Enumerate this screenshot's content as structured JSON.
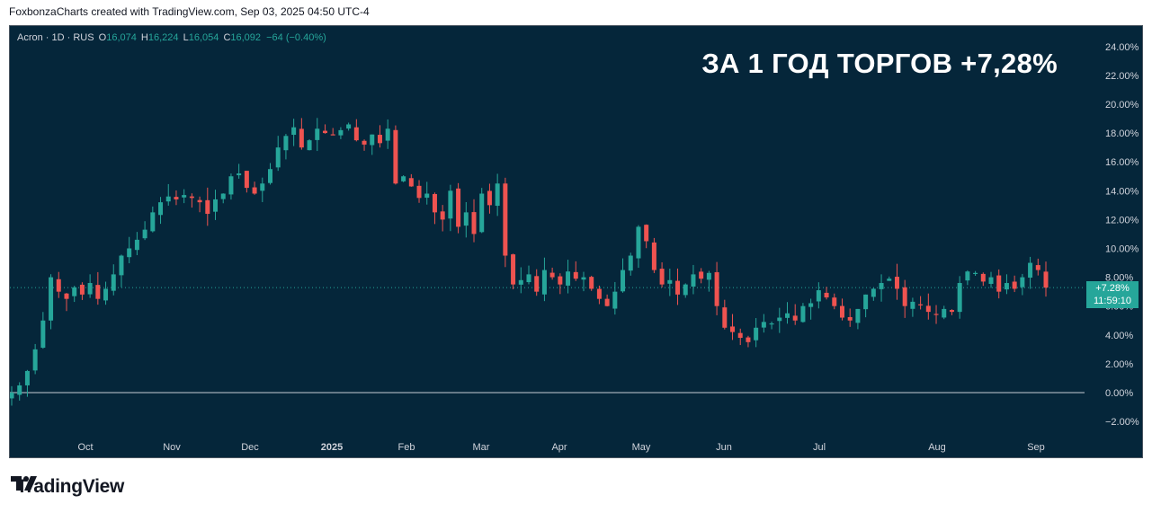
{
  "header": {
    "caption": "FoxbonzaCharts created with TradingView.com, Sep 03, 2025 04:50 UTC-4"
  },
  "legend": {
    "symbol": "Acron · 1D · RUS",
    "o_label": "O",
    "o_value": "16,074",
    "h_label": "H",
    "h_value": "16,224",
    "l_label": "L",
    "l_value": "16,054",
    "c_label": "C",
    "c_value": "16,092",
    "change": "−64 (−0.40%)"
  },
  "title_overlay": "ЗА 1 ГОД ТОРГОВ +7,28%",
  "price_badge": {
    "value": "+7.28%",
    "countdown": "11:59:10"
  },
  "brand": {
    "name": "TradingView"
  },
  "colors": {
    "background": "#05263a",
    "up": "#26a69a",
    "down": "#ef5350",
    "axis_text": "#d1d4dc"
  },
  "chart_data": {
    "type": "candlestick",
    "y_axis": {
      "unit": "%",
      "ticks": [
        "24.00%",
        "22.00%",
        "20.00%",
        "18.00%",
        "16.00%",
        "14.00%",
        "12.00%",
        "10.00%",
        "8.00%",
        "6.00%",
        "4.00%",
        "2.00%",
        "0.00%",
        "−2.00%"
      ],
      "range": [
        -2.5,
        24.5
      ],
      "baseline": 0
    },
    "x_axis": {
      "ticks": [
        "Oct",
        "Nov",
        "Dec",
        "2025",
        "Feb",
        "Mar",
        "Apr",
        "May",
        "Jun",
        "Jul",
        "Aug",
        "Sep"
      ],
      "bold_ticks": [
        "2025"
      ]
    },
    "last_value": 7.28,
    "series_close_percent": [
      0.0,
      0.5,
      1.5,
      3.0,
      5.0,
      8.0,
      7.0,
      6.5,
      7.3,
      6.8,
      7.6,
      6.5,
      7.2,
      8.2,
      9.5,
      10.0,
      10.6,
      11.3,
      12.5,
      13.2,
      13.6,
      13.4,
      13.7,
      13.5,
      13.2,
      12.4,
      13.4,
      13.8,
      15.0,
      15.2,
      14.2,
      13.8,
      14.5,
      15.5,
      17.0,
      17.8,
      18.4,
      17.0,
      17.5,
      18.3,
      18.0,
      17.9,
      18.2,
      18.6,
      17.5,
      17.2,
      17.9,
      17.3,
      18.3,
      14.5,
      15.0,
      14.3,
      13.5,
      13.8,
      12.5,
      12.0,
      14.0,
      11.5,
      12.5,
      11.0,
      13.8,
      13.0,
      14.5,
      9.5,
      7.5,
      7.8,
      8.2,
      7.0,
      8.5,
      8.0,
      7.5,
      8.4,
      7.9,
      8.0,
      7.2,
      6.5,
      6.0,
      7.0,
      8.5,
      9.5,
      11.5,
      10.5,
      8.5,
      7.5,
      7.8,
      6.8,
      7.5,
      8.2,
      7.9,
      8.3,
      6.0,
      4.5,
      4.2,
      3.8,
      3.5,
      4.5,
      4.9,
      4.8,
      5.2,
      5.5,
      5.0,
      6.0,
      6.2,
      7.1,
      6.6,
      6.0,
      5.2,
      5.0,
      5.8,
      6.8,
      7.2,
      7.6,
      7.9,
      7.2,
      6.0,
      6.3,
      6.1,
      5.6,
      5.4,
      5.8,
      5.6,
      7.6,
      8.4,
      8.3,
      7.7,
      8.0,
      7.0,
      7.6,
      7.2,
      8.0,
      9.0,
      8.5,
      7.28
    ]
  }
}
